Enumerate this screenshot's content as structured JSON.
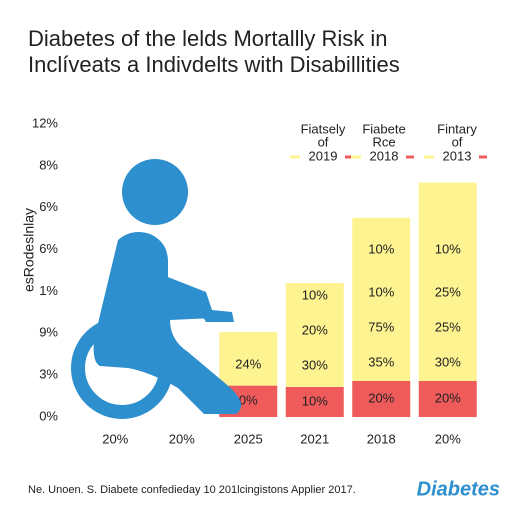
{
  "chart_data": {
    "type": "stacked_bar",
    "title": [
      "Diabetes of the lelds Mortallly Risk in",
      "Inclíveats a Indivdelts with Disabillities"
    ],
    "y_label": "esRodeslnlay",
    "note": "Ne. Unoen. S. Diabete confedieday 10 201lcingistons Applier 2017.",
    "brand": "Diabetes",
    "categories": [
      "20%",
      "20%",
      "2025",
      "2021",
      "2018",
      "20%"
    ],
    "ylim": [
      0,
      7
    ],
    "yticks": [
      {
        "value": 0,
        "label": "0%"
      },
      {
        "value": 1,
        "label": "3%"
      },
      {
        "value": 2,
        "label": "9%"
      },
      {
        "value": 3,
        "label": "1%"
      },
      {
        "value": 4,
        "label": "6%"
      },
      {
        "value": 5,
        "label": "6%"
      },
      {
        "value": 6,
        "label": "8%"
      },
      {
        "value": 7,
        "label": "12%"
      }
    ],
    "series": [
      {
        "color": "#ef5b5b",
        "values": [
          null,
          null,
          0.75,
          0.72,
          0.86,
          0.86
        ]
      },
      {
        "color": "#fdf391",
        "values": [
          null,
          null,
          1.28,
          2.48,
          3.9,
          4.74
        ]
      }
    ],
    "bar_labels": [
      [],
      [],
      [
        "0%",
        "24%"
      ],
      [
        "10%",
        "30%",
        "20%",
        "10%"
      ],
      [
        "20%",
        "35%",
        "75%",
        "10%",
        "10%"
      ],
      [
        "20%",
        "30%",
        "25%",
        "25%",
        "10%"
      ]
    ],
    "legend": [
      {
        "lines": [
          "Fiatsely",
          "of"
        ],
        "label": "2019"
      },
      {
        "lines": [
          "Fiabete",
          "Rce"
        ],
        "label": "2018"
      },
      {
        "lines": [
          "Fintary",
          "of"
        ],
        "label": "2013"
      }
    ]
  }
}
